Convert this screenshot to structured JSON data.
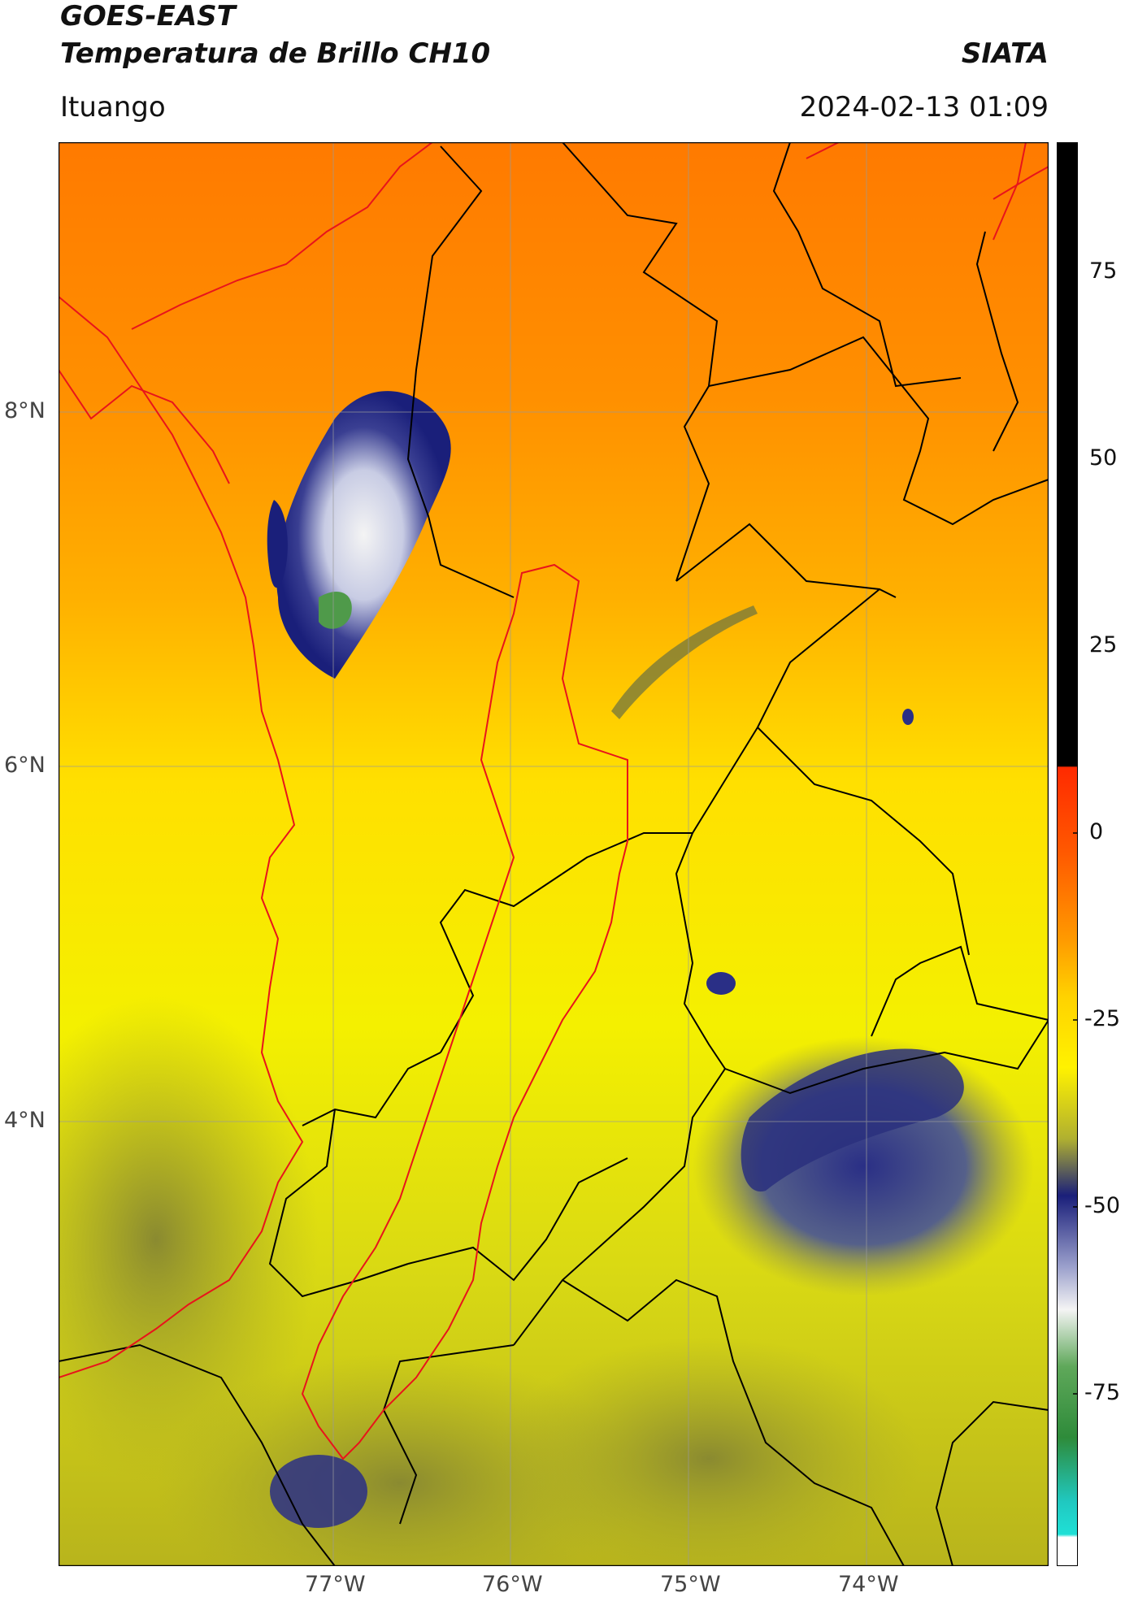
{
  "header": {
    "title_line1": "GOES-EAST",
    "title_line2": "Temperatura de Brillo CH10",
    "brand": "SIATA",
    "location": "Ituango",
    "timestamp": "2024-02-13 01:09"
  },
  "map": {
    "lat_labels": [
      "8°N",
      "6°N",
      "4°N"
    ],
    "lon_labels": [
      "77°W",
      "76°W",
      "75°W",
      "74°W"
    ],
    "border_colors": {
      "international": "#e8141b",
      "departments": "#000000",
      "watershed": "#e8141b"
    },
    "gridlines": true
  },
  "colorbar": {
    "ticks": [
      "75",
      "50",
      "25",
      "0",
      "-25",
      "-50",
      "-75"
    ],
    "colors": {
      "hot": "#000000",
      "red": "#ff2a00",
      "orange": "#ff8c00",
      "yellow": "#fff200",
      "olive": "#9a9a22",
      "navy": "#1a1f7a",
      "white": "#f4f4f4",
      "green": "#2e8b3a",
      "cyan": "#1fe0d6"
    }
  }
}
